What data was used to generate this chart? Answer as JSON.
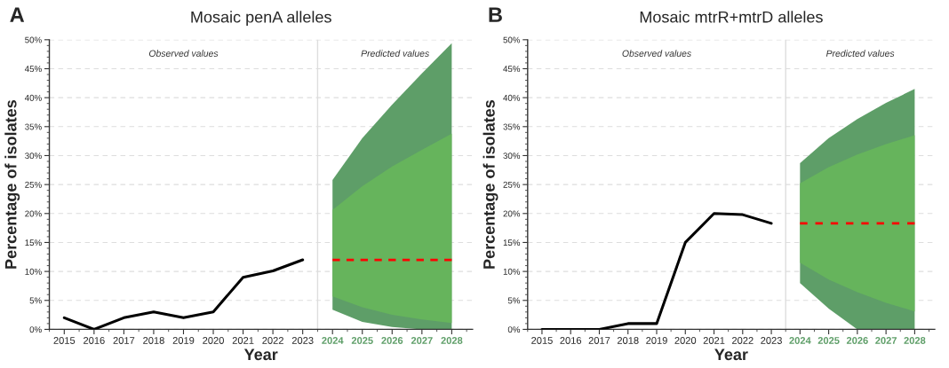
{
  "chart_data": [
    {
      "type": "line",
      "title": "Mosaic penA alleles",
      "xlabel": "Year",
      "ylabel": "Percentage of isolates",
      "annotations": [
        "A",
        "Observed values",
        "Predicted values"
      ],
      "series": [
        {
          "color": "#5e9e68",
          "x": [
            2024,
            2025,
            2026,
            2027,
            2028
          ],
          "values": [
            null,
            null,
            null,
            null,
            null
          ],
          "lower": [
            3.4,
            1.3,
            0.4,
            0,
            0
          ],
          "upper": [
            25.8,
            33,
            38.8,
            44.2,
            49.4
          ]
        },
        {
          "color": "#66b45c",
          "x": [
            2024,
            2025,
            2026,
            2027,
            2028
          ],
          "values": [
            null,
            null,
            null,
            null,
            null
          ],
          "lower": [
            5.7,
            3.8,
            2.5,
            1.7,
            1.1
          ],
          "upper": [
            20.6,
            24.7,
            28.1,
            31.0,
            33.8
          ]
        },
        {
          "color": "#000000",
          "x": [
            2015,
            2016,
            2017,
            2018,
            2019,
            2020,
            2021,
            2022,
            2023
          ],
          "values": [
            2,
            0,
            2,
            3,
            2,
            3,
            9,
            10.1,
            12
          ]
        },
        {
          "color": "#ff0000",
          "line_style": "dashed",
          "x": [
            2024,
            2025,
            2026,
            2027,
            2028
          ],
          "values": [
            12,
            12,
            12,
            12,
            12
          ]
        }
      ],
      "ref_lines": [
        {
          "axis": "x",
          "value": 2023.5,
          "color": "#dddddd"
        }
      ],
      "xlim": [
        2014.5,
        2028.7
      ],
      "xticks": [
        2015,
        2016,
        2017,
        2018,
        2019,
        2020,
        2021,
        2022,
        2023,
        2024,
        2025,
        2026,
        2027,
        2028
      ],
      "ylim": [
        0,
        50
      ],
      "yticks": [
        {
          "value": 0,
          "label": "0%"
        },
        {
          "value": 5,
          "label": "5%"
        },
        {
          "value": 10,
          "label": "10%"
        },
        {
          "value": 15,
          "label": "15%"
        },
        {
          "value": 20,
          "label": "20%"
        },
        {
          "value": 25,
          "label": "25%"
        },
        {
          "value": 30,
          "label": "30%"
        },
        {
          "value": 35,
          "label": "35%"
        },
        {
          "value": 40,
          "label": "40%"
        },
        {
          "value": 45,
          "label": "45%"
        },
        {
          "value": 50,
          "label": "50%"
        }
      ],
      "grid": "y",
      "legend": false
    },
    {
      "type": "line",
      "title": "Mosaic mtrR+mtrD alleles",
      "xlabel": "Year",
      "ylabel": "Percentage of isolates",
      "annotations": [
        "B",
        "Observed values",
        "Predicted values"
      ],
      "series": [
        {
          "color": "#5e9e68",
          "x": [
            2024,
            2025,
            2026,
            2027,
            2028
          ],
          "values": [
            null,
            null,
            null,
            null,
            null
          ],
          "lower": [
            8,
            3.6,
            0,
            0,
            0
          ],
          "upper": [
            28.7,
            33,
            36.3,
            39.1,
            41.5
          ]
        },
        {
          "color": "#66b45c",
          "x": [
            2024,
            2025,
            2026,
            2027,
            2028
          ],
          "values": [
            null,
            null,
            null,
            null,
            null
          ],
          "lower": [
            11.5,
            8.6,
            6.4,
            4.6,
            3.1
          ],
          "upper": [
            25.2,
            28,
            30.2,
            32,
            33.5
          ]
        },
        {
          "color": "#000000",
          "x": [
            2015,
            2016,
            2017,
            2018,
            2019,
            2020,
            2021,
            2022,
            2023
          ],
          "values": [
            0,
            0,
            0,
            1,
            1,
            15,
            20,
            19.8,
            18.3
          ]
        },
        {
          "color": "#ff0000",
          "line_style": "dashed",
          "x": [
            2024,
            2025,
            2026,
            2027,
            2028
          ],
          "values": [
            18.3,
            18.3,
            18.3,
            18.3,
            18.3
          ]
        }
      ],
      "ref_lines": [
        {
          "axis": "x",
          "value": 2023.5,
          "color": "#dddddd"
        }
      ],
      "xlim": [
        2014.5,
        2028.7
      ],
      "xticks": [
        2015,
        2016,
        2017,
        2018,
        2019,
        2020,
        2021,
        2022,
        2023,
        2024,
        2025,
        2026,
        2027,
        2028
      ],
      "ylim": [
        0,
        50
      ],
      "yticks": [
        {
          "value": 0,
          "label": "0%"
        },
        {
          "value": 5,
          "label": "5%"
        },
        {
          "value": 10,
          "label": "10%"
        },
        {
          "value": 15,
          "label": "15%"
        },
        {
          "value": 20,
          "label": "20%"
        },
        {
          "value": 25,
          "label": "25%"
        },
        {
          "value": 30,
          "label": "30%"
        },
        {
          "value": 35,
          "label": "35%"
        },
        {
          "value": 40,
          "label": "40%"
        },
        {
          "value": 45,
          "label": "45%"
        },
        {
          "value": 50,
          "label": "50%"
        }
      ],
      "grid": "y",
      "legend": false
    }
  ]
}
